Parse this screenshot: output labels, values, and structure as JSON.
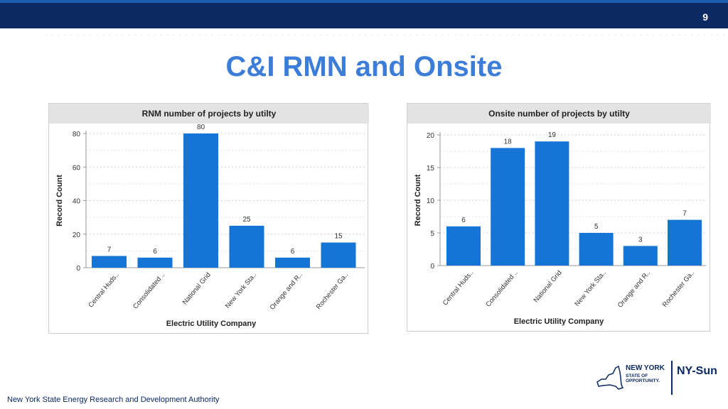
{
  "page": {
    "number": "9",
    "title": "C&I RMN and Onsite",
    "footer": "New York State Energy Research and Development Authority",
    "logo": {
      "state_line1": "NEW YORK",
      "state_line2": "STATE OF",
      "state_line3": "OPPORTUNITY.",
      "program": "NY-Sun",
      "icon": "new-york-state-outline-icon"
    },
    "colors": {
      "bar": "#1475d6",
      "title": "#3b7dd8",
      "header_bar": "#0b2a63"
    }
  },
  "chart_data": [
    {
      "type": "bar",
      "title": "RNM number of projects by utilty",
      "xlabel": "Electric Utility Company",
      "ylabel": "Record Count",
      "categories": [
        "Central Huds..",
        "Consolidated ..",
        "National Grid",
        "New York Sta..",
        "Orange and R..",
        "Rochester Ga.."
      ],
      "values": [
        7,
        6,
        80,
        25,
        6,
        15
      ],
      "ylim": [
        0,
        80
      ],
      "yticks": [
        0,
        20,
        40,
        60,
        80
      ],
      "grid": true
    },
    {
      "type": "bar",
      "title": "Onsite number of projects by utilty",
      "xlabel": "Electric Utility Company",
      "ylabel": "Record Count",
      "categories": [
        "Central Huds..",
        "Consolidated ..",
        "National Grid",
        "New York Sta..",
        "Orange and R..",
        "Rochester Ga.."
      ],
      "values": [
        6,
        18,
        19,
        5,
        3,
        7
      ],
      "ylim": [
        0,
        20
      ],
      "yticks": [
        0,
        5,
        10,
        15,
        20
      ],
      "grid": true
    }
  ]
}
